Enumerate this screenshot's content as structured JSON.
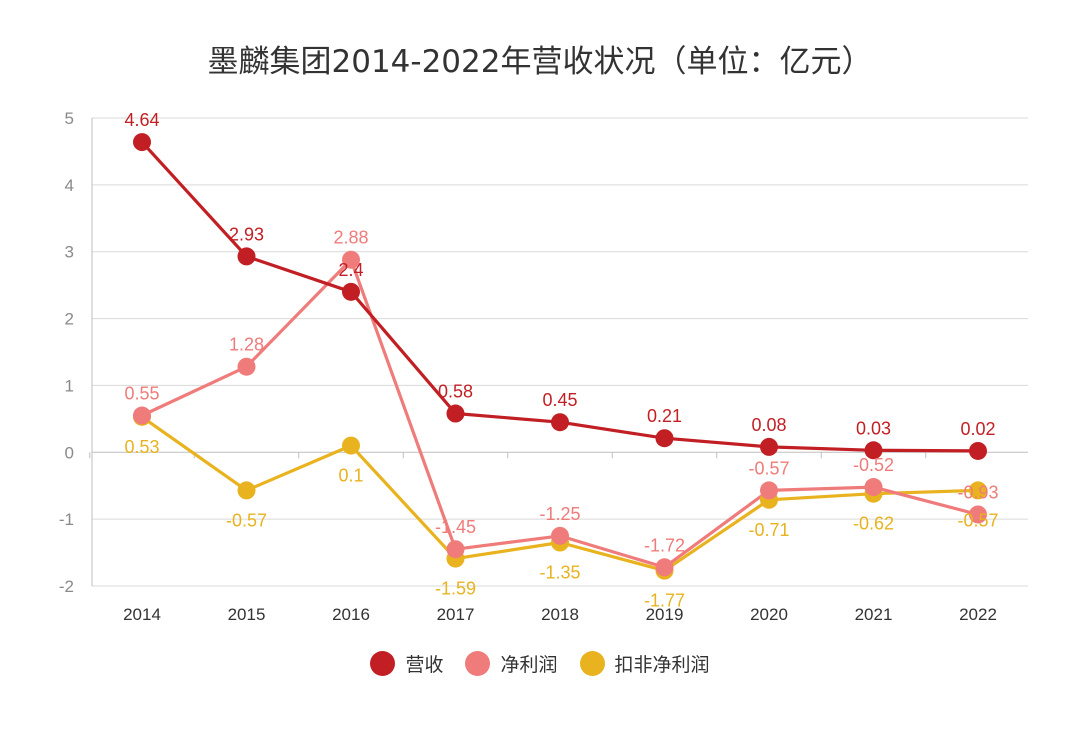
{
  "chart_data": {
    "type": "line",
    "title": "墨麟集团2014-2022年营收状况（单位：亿元）",
    "xlabel": "",
    "ylabel": "",
    "categories": [
      "2014",
      "2015",
      "2016",
      "2017",
      "2018",
      "2019",
      "2020",
      "2021",
      "2022"
    ],
    "ylim": [
      -2,
      5
    ],
    "yticks": [
      -2,
      -1,
      0,
      1,
      2,
      3,
      4,
      5
    ],
    "grid": true,
    "legend_position": "bottom",
    "series": [
      {
        "name": "营收",
        "color": "#c21f24",
        "values": [
          4.64,
          2.93,
          2.4,
          0.58,
          0.45,
          0.21,
          0.08,
          0.03,
          0.02
        ],
        "labels": [
          "4.64",
          "2.93",
          "2.4",
          "0.58",
          "0.45",
          "0.21",
          "0.08",
          "0.03",
          "0.02"
        ]
      },
      {
        "name": "净利润",
        "color": "#f07b7b",
        "values": [
          0.55,
          1.28,
          2.88,
          -1.45,
          -1.25,
          -1.72,
          -0.57,
          -0.52,
          -0.93
        ],
        "labels": [
          "0.55",
          "1.28",
          "2.88",
          "-1.45",
          "-1.25",
          "-1.72",
          "-0.57",
          "-0.52",
          "-0.93"
        ]
      },
      {
        "name": "扣非净利润",
        "color": "#e8b31e",
        "values": [
          0.53,
          -0.57,
          0.1,
          -1.59,
          -1.35,
          -1.77,
          -0.71,
          -0.62,
          -0.57
        ],
        "labels": [
          "0.53",
          "-0.57",
          "0.1",
          "-1.59",
          "-1.35",
          "-1.77",
          "-0.71",
          "-0.62",
          "-0.57"
        ]
      }
    ]
  }
}
